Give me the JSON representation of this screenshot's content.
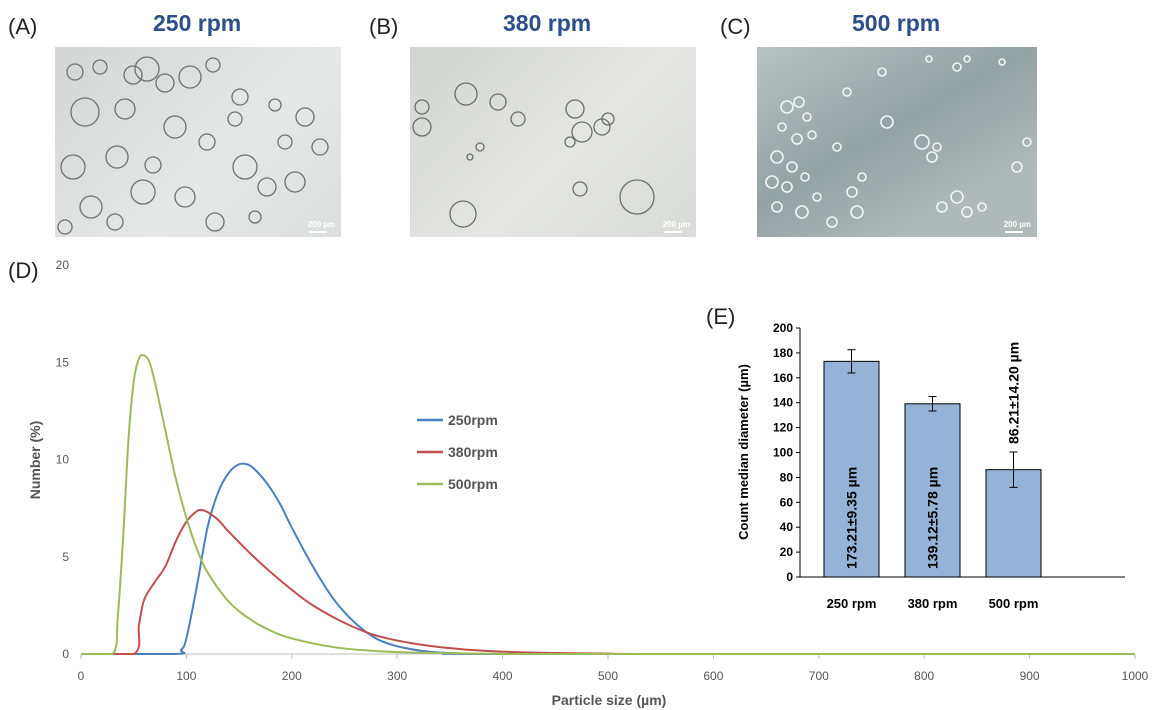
{
  "panels": {
    "a": {
      "letter": "(A)",
      "title": "250 rpm",
      "scale": "200 µm"
    },
    "b": {
      "letter": "(B)",
      "title": "380 rpm",
      "scale": "200 µm"
    },
    "c": {
      "letter": "(C)",
      "title": "500 rpm",
      "scale": "200 µm"
    },
    "d": {
      "letter": "(D)"
    },
    "e": {
      "letter": "(E)"
    }
  },
  "chart_data": [
    {
      "type": "line",
      "xlabel": "Particle size (µm)",
      "ylabel": "Number (%)",
      "xlim": [
        0,
        1000
      ],
      "ylim": [
        0,
        20
      ],
      "xticks": [
        "0",
        "100",
        "200",
        "300",
        "400",
        "500",
        "600",
        "700",
        "800",
        "900",
        "1000"
      ],
      "yticks": [
        "0",
        "5",
        "10",
        "15",
        "20"
      ],
      "legend_position": "center",
      "series": [
        {
          "name": "250rpm",
          "color": "#4a7fc1",
          "x": [
            0,
            90,
            95,
            100,
            110,
            120,
            130,
            140,
            150,
            160,
            170,
            180,
            190,
            200,
            220,
            240,
            260,
            280,
            300,
            330,
            360,
            400,
            1000
          ],
          "y": [
            0,
            0,
            0.2,
            0.8,
            3.5,
            6.5,
            8.3,
            9.3,
            9.75,
            9.7,
            9.2,
            8.5,
            7.6,
            6.5,
            4.5,
            2.8,
            1.6,
            0.8,
            0.4,
            0.12,
            0.03,
            0,
            0
          ]
        },
        {
          "name": "380rpm",
          "color": "#c0504d",
          "x": [
            0,
            50,
            55,
            60,
            70,
            80,
            90,
            100,
            110,
            115,
            120,
            130,
            140,
            160,
            180,
            200,
            220,
            250,
            280,
            320,
            360,
            400,
            450,
            500,
            560,
            1000
          ],
          "y": [
            0,
            0,
            1.5,
            2.8,
            3.7,
            4.5,
            5.8,
            6.8,
            7.35,
            7.4,
            7.3,
            6.9,
            6.3,
            5.2,
            4.2,
            3.3,
            2.5,
            1.6,
            0.95,
            0.5,
            0.25,
            0.12,
            0.05,
            0.02,
            0,
            0
          ]
        },
        {
          "name": "500rpm",
          "color": "#9bbb59",
          "x": [
            0,
            30,
            35,
            40,
            45,
            50,
            55,
            60,
            65,
            70,
            80,
            90,
            100,
            110,
            120,
            140,
            160,
            180,
            200,
            240,
            280,
            320,
            360,
            400,
            450,
            1000
          ],
          "y": [
            0,
            0,
            2,
            6,
            11,
            14,
            15.2,
            15.35,
            15,
            14,
            11.5,
            9,
            7,
            5.4,
            4.2,
            2.7,
            1.8,
            1.2,
            0.8,
            0.35,
            0.15,
            0.07,
            0.03,
            0.01,
            0,
            0
          ]
        }
      ]
    },
    {
      "type": "bar",
      "ylabel": "Count median diameter (µm)",
      "ylim": [
        0,
        200
      ],
      "yticks": [
        "0",
        "20",
        "40",
        "60",
        "80",
        "100",
        "120",
        "140",
        "160",
        "180",
        "200"
      ],
      "categories": [
        "250 rpm",
        "380 rpm",
        "500 rpm"
      ],
      "values": [
        173.21,
        139.12,
        86.21
      ],
      "errors": [
        9.35,
        5.78,
        14.2
      ],
      "labels": [
        "173.21±9.35 µm",
        "139.12±5.78 µm",
        "86.21±14.20 µm"
      ],
      "bar_color": "#95b3d7"
    }
  ]
}
